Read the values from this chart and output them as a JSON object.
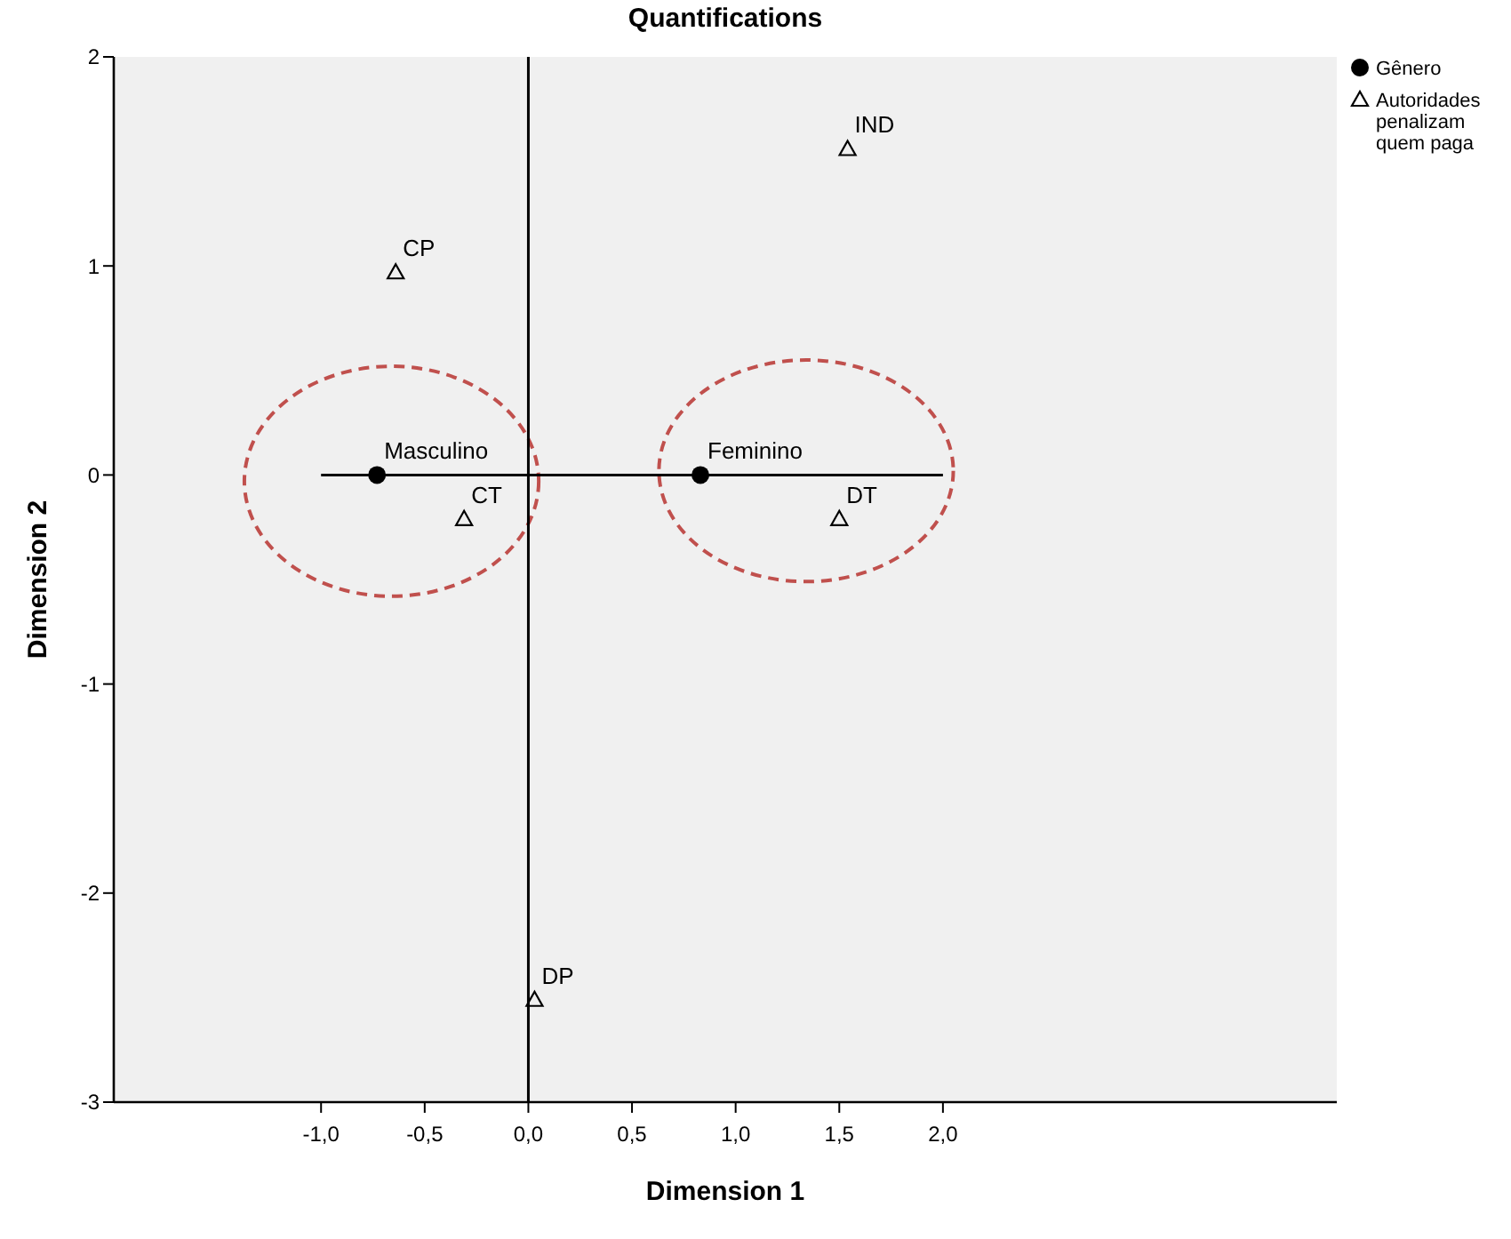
{
  "chart_data": {
    "type": "scatter",
    "title": "Quantifications",
    "xlabel": "Dimension 1",
    "ylabel": "Dimension 2",
    "xlim": [
      -2,
      3.9
    ],
    "ylim": [
      -3,
      2
    ],
    "xticks": [
      {
        "value": -1,
        "label": "-1,0"
      },
      {
        "value": -0.5,
        "label": "-0,5"
      },
      {
        "value": 0,
        "label": "0,0"
      },
      {
        "value": 0.5,
        "label": "0,5"
      },
      {
        "value": 1,
        "label": "1,0"
      },
      {
        "value": 1.5,
        "label": "1,5"
      },
      {
        "value": 2,
        "label": "2,0"
      }
    ],
    "yticks": [
      2,
      1,
      0,
      -1,
      -2,
      -3
    ],
    "grid": false,
    "legend": "top right",
    "series": [
      {
        "type": "line",
        "color": "#000000",
        "x": [
          -1,
          2
        ],
        "values": [
          0,
          0
        ],
        "marker": "none"
      },
      {
        "name": "Gênero",
        "color": "#000000",
        "marker": "circle",
        "x": [
          -0.73,
          0.83
        ],
        "values": [
          0,
          0
        ]
      },
      {
        "name": "Autoridades penalizam quem paga",
        "color": "#000000",
        "marker": "triangle",
        "x": [
          -0.64,
          -0.31,
          1.54,
          1.5,
          0.03
        ],
        "values": [
          0.97,
          -0.21,
          1.56,
          -0.21,
          -2.51
        ]
      }
    ],
    "ref_lines": [
      {
        "axis": "x",
        "value": 0,
        "color": "#000000"
      }
    ],
    "annotations": [
      {
        "text": "Masculino",
        "x": -0.73,
        "y": 0
      },
      {
        "text": "Feminino",
        "x": 0.83,
        "y": 0
      },
      {
        "text": "CP",
        "x": -0.64,
        "y": 0.97
      },
      {
        "text": "CT",
        "x": -0.31,
        "y": -0.21
      },
      {
        "text": "IND",
        "x": 1.54,
        "y": 1.56
      },
      {
        "text": "DT",
        "x": 1.5,
        "y": -0.21
      },
      {
        "text": "DP",
        "x": 0.03,
        "y": -2.51
      }
    ]
  }
}
